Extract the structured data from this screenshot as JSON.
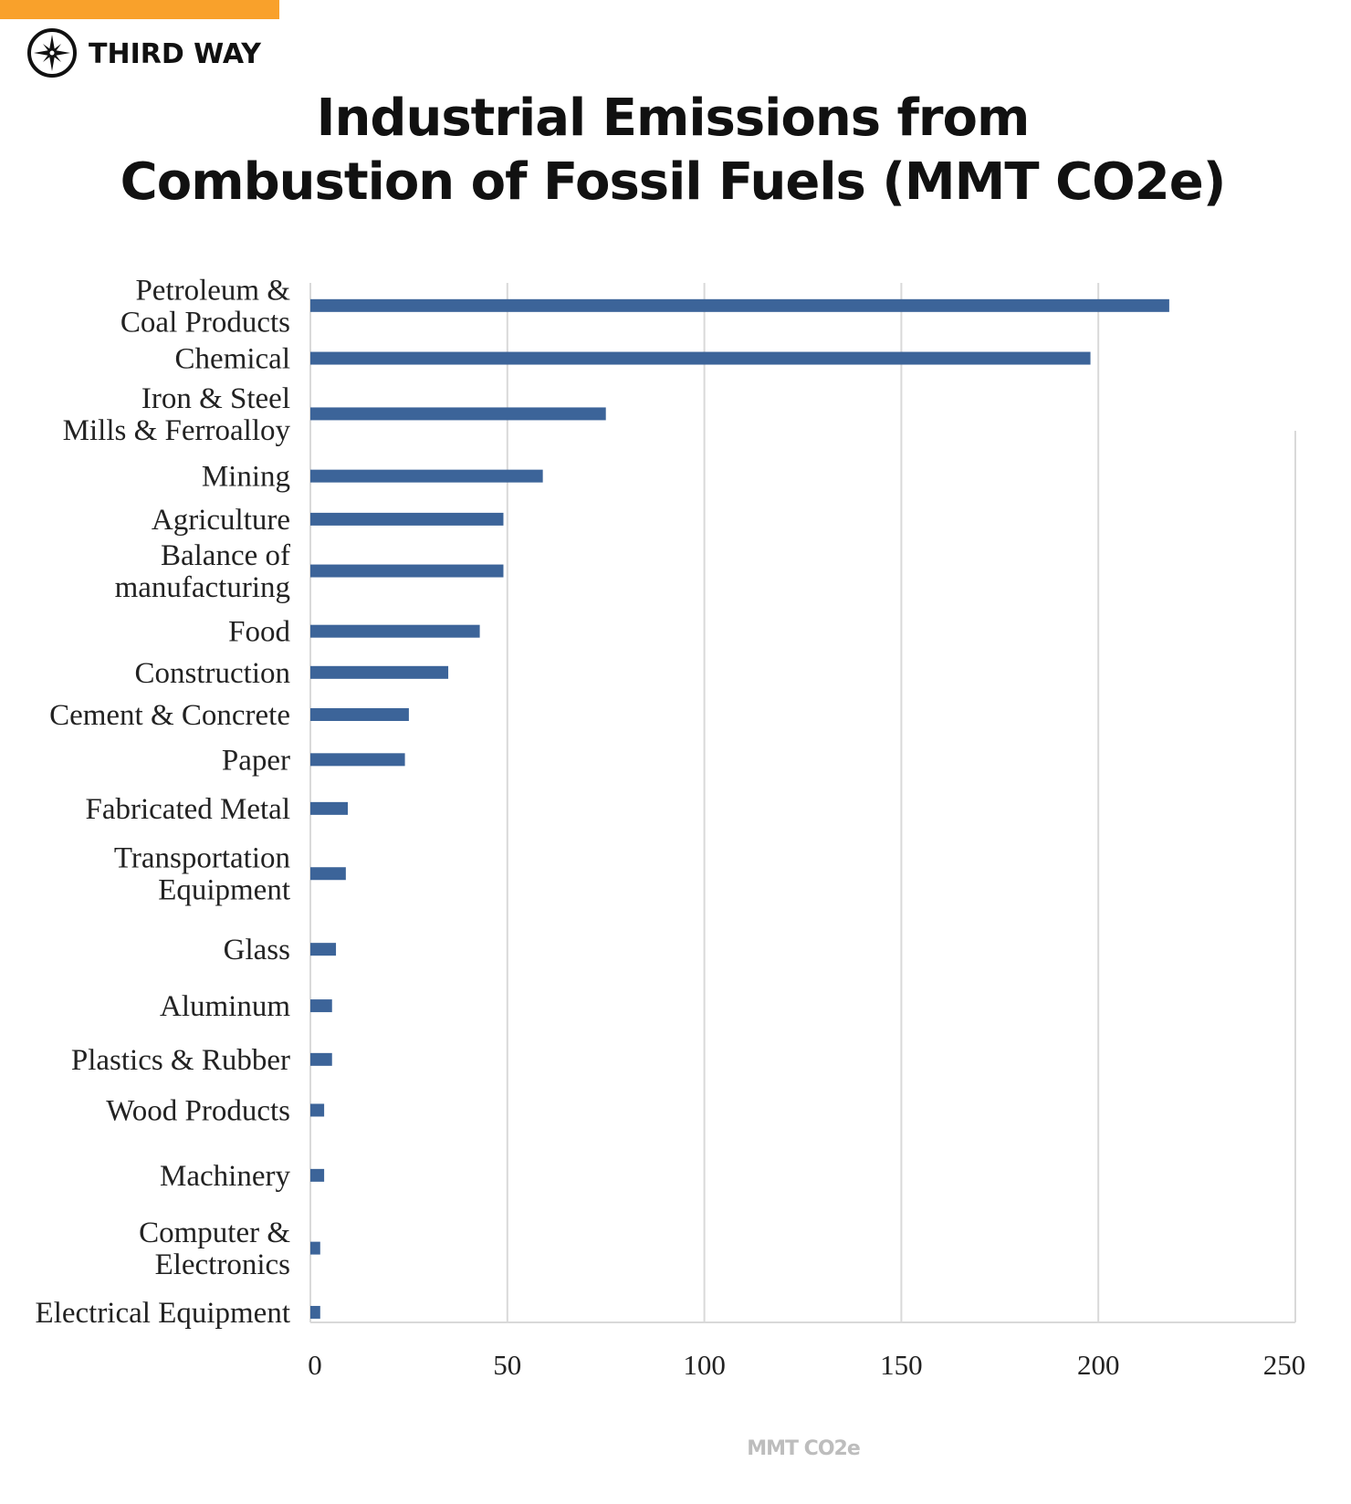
{
  "brand": {
    "name": "THIRD WAY",
    "accent_color": "#F9A12B",
    "logo_icon": "compass-star-icon"
  },
  "chart_data": {
    "type": "bar",
    "orientation": "horizontal",
    "title": "Industrial Emissions from Combustion of Fossil Fuels (MMT CO2e)",
    "title_lines": [
      "Industrial Emissions from",
      "Combustion of Fossil Fuels (MMT CO2e)"
    ],
    "xlabel": "MMT CO2e",
    "ylabel": "",
    "xlim": [
      0,
      250
    ],
    "xticks": [
      "0",
      "50",
      "100",
      "150",
      "200",
      "250"
    ],
    "grid": true,
    "bar_color": "#3C6499",
    "categories": [
      [
        "Petroleum &",
        "Coal Products"
      ],
      [
        "Chemical"
      ],
      [
        "Iron & Steel",
        "Mills & Ferroalloy"
      ],
      [
        "Mining"
      ],
      [
        "Agriculture"
      ],
      [
        "Balance of",
        "manufacturing"
      ],
      [
        "Food"
      ],
      [
        "Construction"
      ],
      [
        "Cement & Concrete"
      ],
      [
        "Paper"
      ],
      [
        "Fabricated Metal"
      ],
      [
        "Transportation",
        "Equipment"
      ],
      [
        "Glass"
      ],
      [
        "Aluminum"
      ],
      [
        "Plastics & Rubber"
      ],
      [
        "Wood Products"
      ],
      [
        "Machinery"
      ],
      [
        "Computer &",
        "Electronics"
      ],
      [
        "Electrical Equipment"
      ]
    ],
    "values": [
      218,
      198,
      75,
      59,
      49,
      49,
      43,
      35,
      25,
      24,
      9.5,
      9,
      6.5,
      5.5,
      5.5,
      3.5,
      3.5,
      2.5,
      2.5
    ]
  }
}
